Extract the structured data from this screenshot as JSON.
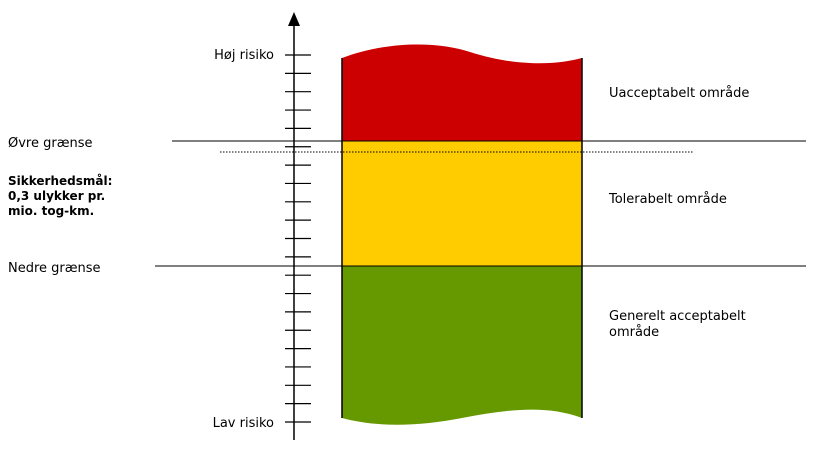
{
  "axis": {
    "top_label": "Høj risiko",
    "bottom_label": "Lav risiko"
  },
  "thresholds": {
    "upper": "Øvre grænse",
    "lower": "Nedre grænse"
  },
  "target": {
    "lines": [
      "Sikkerhedsmål:",
      "0,3 ulykker pr.",
      "mio. tog-km."
    ]
  },
  "zones": [
    {
      "lines": [
        "Uacceptabelt område"
      ]
    },
    {
      "lines": [
        "Tolerabelt område"
      ]
    },
    {
      "lines": [
        "Generelt acceptabelt",
        "område"
      ]
    }
  ]
}
